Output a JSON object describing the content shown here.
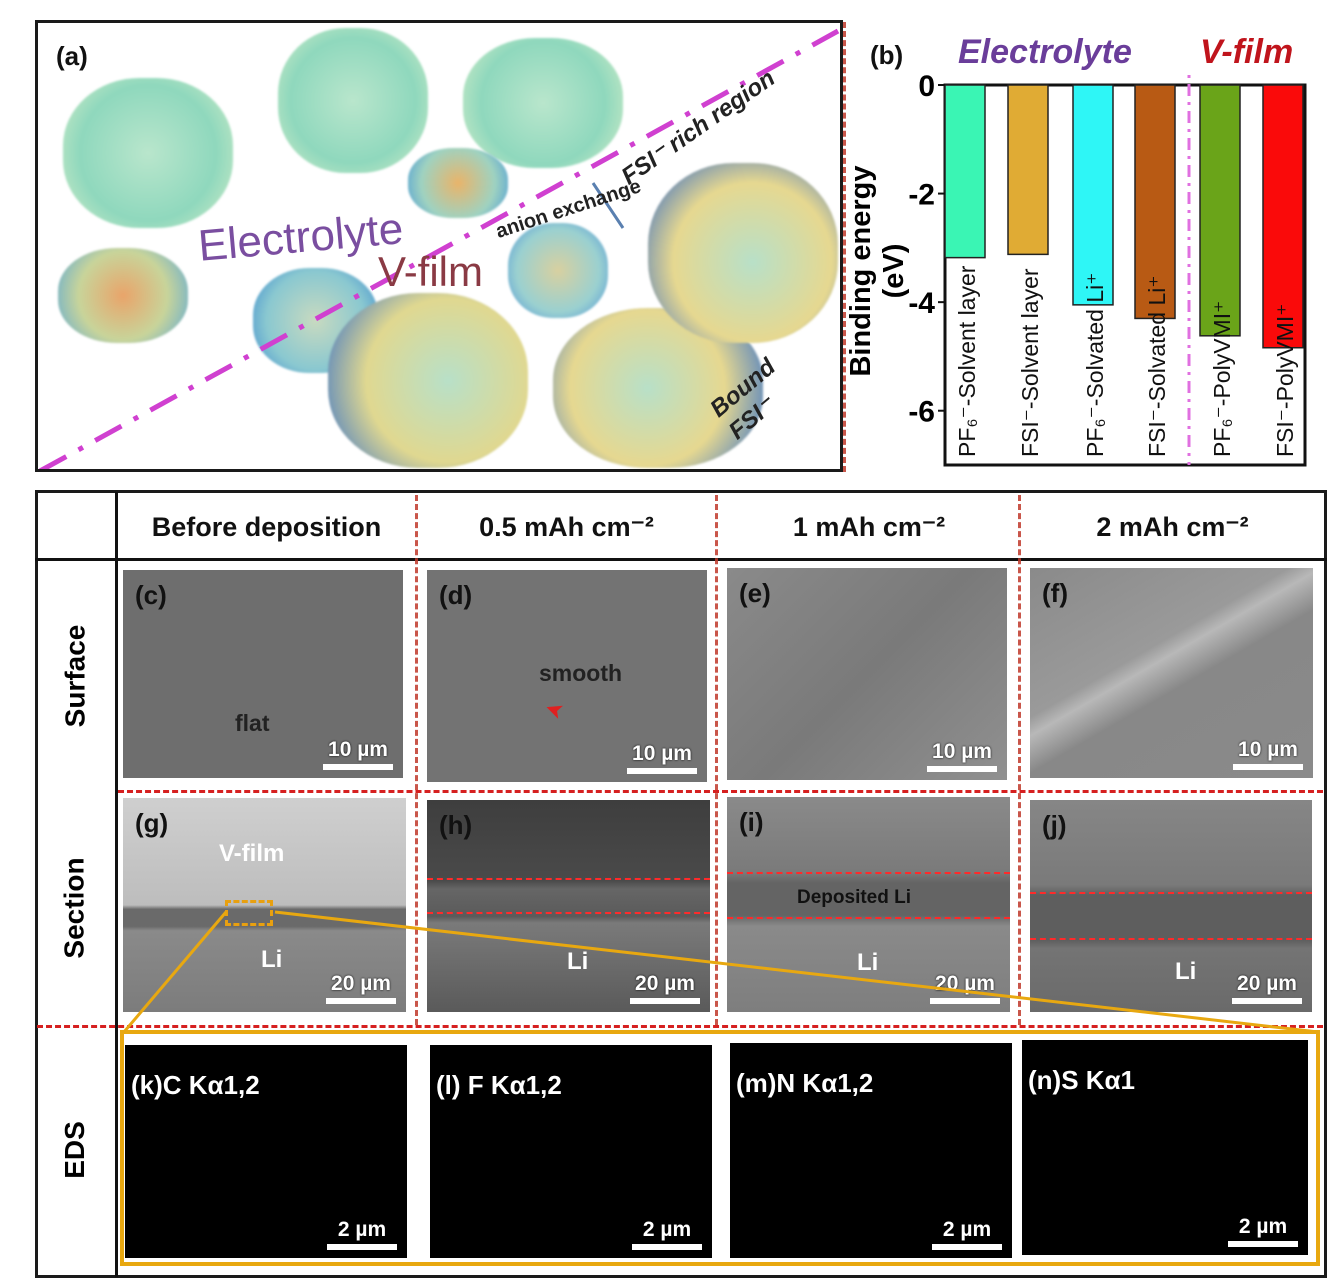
{
  "panel_a": {
    "label": "(a)",
    "electrolyte": "Electrolyte",
    "vfilm": "V-film",
    "anion_exchange": "anion exchange",
    "fsi_rich": "FSI⁻ rich region",
    "bound_fsi": "Bound FSI⁻"
  },
  "panel_b": {
    "label": "(b)",
    "region_electrolyte": "Electrolyte",
    "region_vfilm": "V-film",
    "colors": {
      "electrolyte": "#6a3d9a",
      "vfilm": "#c0141c"
    }
  },
  "chart_data": {
    "type": "bar",
    "ylabel": "Binding energy (eV)",
    "ylim": [
      -7,
      0
    ],
    "yticks": [
      "0",
      "-2",
      "-4",
      "-6"
    ],
    "categories": [
      "PF₆⁻-Solvent layer",
      "FSI⁻-Solvent layer",
      "PF₆⁻-Solvated Li⁺",
      "FSI⁻-Solvated Li⁺",
      "PF₆⁻-PolyVMI⁺",
      "FSI⁻-PolyVMI⁺"
    ],
    "values": [
      -3.18,
      -3.12,
      -4.05,
      -4.3,
      -4.62,
      -4.84
    ],
    "colors": [
      "#3af5b4",
      "#e0ab34",
      "#2ef6f6",
      "#b85a14",
      "#6aa419",
      "#fa0a0a"
    ],
    "grid": false
  },
  "grid": {
    "columns": [
      "Before deposition",
      "0.5 mAh cm⁻²",
      "1 mAh cm⁻²",
      "2 mAh cm⁻²"
    ],
    "rows": [
      "Surface",
      "Section",
      "EDS"
    ],
    "surface": [
      {
        "label": "(c)",
        "note": "flat",
        "scale": "10 µm"
      },
      {
        "label": "(d)",
        "note": "smooth",
        "scale": "10 µm"
      },
      {
        "label": "(e)",
        "scale": "10 µm"
      },
      {
        "label": "(f)",
        "scale": "10 µm"
      }
    ],
    "section": [
      {
        "label": "(g)",
        "top": "V-film",
        "bottom": "Li",
        "scale": "20 µm"
      },
      {
        "label": "(h)",
        "bottom": "Li",
        "scale": "20 µm"
      },
      {
        "label": "(i)",
        "note": "Deposited Li",
        "bottom": "Li",
        "scale": "20 µm"
      },
      {
        "label": "(j)",
        "bottom": "Li",
        "scale": "20 µm"
      }
    ],
    "eds": [
      {
        "label": "(k)C Kα1,2",
        "scale": "2 µm",
        "color": "#e020e0"
      },
      {
        "label": "(l) F Kα1,2",
        "scale": "2 µm",
        "color": "#d01818"
      },
      {
        "label": "(m)N Kα1,2",
        "scale": "2 µm",
        "color": "#20c8d0"
      },
      {
        "label": "(n)S Kα1",
        "scale": "2 µm",
        "color": "#8ad014"
      }
    ]
  }
}
